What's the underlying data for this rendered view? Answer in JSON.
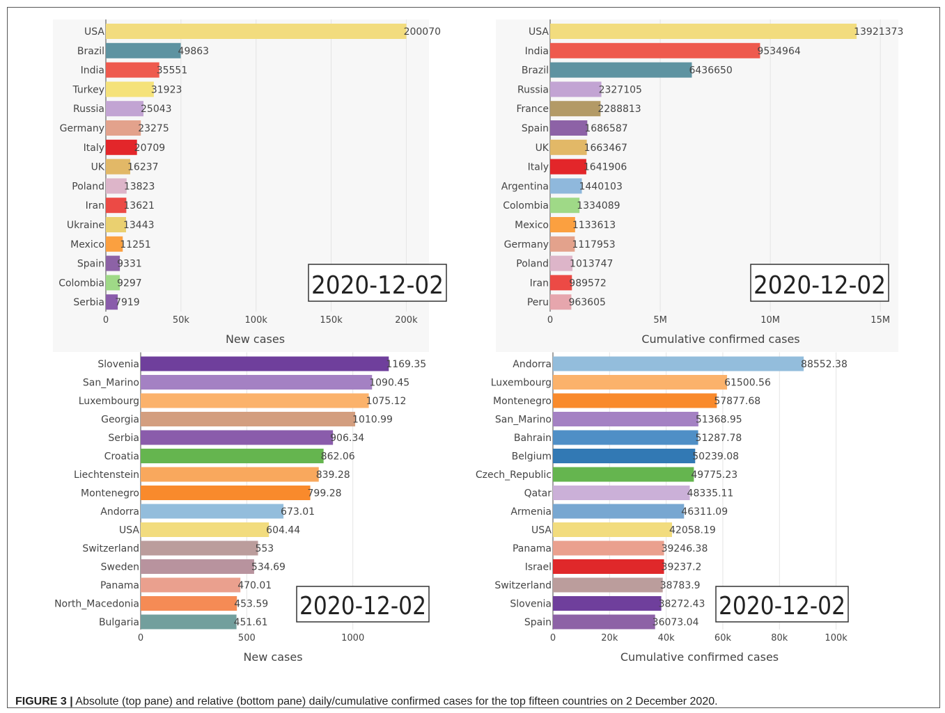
{
  "caption": {
    "label": "FIGURE 3 |",
    "text": "Absolute (top pane) and relative (bottom pane) daily/cumulative confirmed cases for the top fifteen countries on 2 December 2020."
  },
  "chart_data": [
    {
      "type": "bar",
      "orientation": "horizontal",
      "date_label": "2020-12-02",
      "xlabel": "New cases",
      "xlim": [
        0,
        210000
      ],
      "xticks": [
        0,
        50000,
        100000,
        150000,
        200000
      ],
      "xtick_labels": [
        "0",
        "50k",
        "100k",
        "150k",
        "200k"
      ],
      "grid": true,
      "categories": [
        "USA",
        "Brazil",
        "India",
        "Turkey",
        "Russia",
        "Germany",
        "Italy",
        "UK",
        "Poland",
        "Iran",
        "Ukraine",
        "Mexico",
        "Spain",
        "Colombia",
        "Serbia"
      ],
      "values": [
        200070,
        49863,
        35551,
        31923,
        25043,
        23275,
        20709,
        16237,
        13823,
        13621,
        13443,
        11251,
        9331,
        9297,
        7919
      ],
      "value_labels": [
        "200070",
        "49863",
        "35551",
        "31923",
        "25043",
        "23275",
        "20709",
        "16237",
        "13823",
        "13621",
        "13443",
        "11251",
        "9331",
        "9297",
        "7919"
      ],
      "colors": [
        "#f2dc7e",
        "#5e93a1",
        "#ee5a4e",
        "#f5e27a",
        "#c2a4d3",
        "#e3a28c",
        "#e3262a",
        "#e2b867",
        "#ddb5c9",
        "#ec4a45",
        "#ead070",
        "#fba040",
        "#8d62a6",
        "#9fd987",
        "#8a5cab"
      ]
    },
    {
      "type": "bar",
      "orientation": "horizontal",
      "date_label": "2020-12-02",
      "xlabel": "Cumulative confirmed cases",
      "xlim": [
        0,
        15500000
      ],
      "xticks": [
        0,
        5000000,
        10000000,
        15000000
      ],
      "xtick_labels": [
        "0",
        "5M",
        "10M",
        "15M"
      ],
      "grid": true,
      "categories": [
        "USA",
        "India",
        "Brazil",
        "Russia",
        "France",
        "Spain",
        "UK",
        "Italy",
        "Argentina",
        "Colombia",
        "Mexico",
        "Germany",
        "Poland",
        "Iran",
        "Peru"
      ],
      "values": [
        13921373,
        9534964,
        6436650,
        2327105,
        2288813,
        1686587,
        1663467,
        1641906,
        1440103,
        1334089,
        1133613,
        1117953,
        1013747,
        989572,
        963605
      ],
      "value_labels": [
        "13921373",
        "9534964",
        "6436650",
        "2327105",
        "2288813",
        "1686587",
        "1663467",
        "1641906",
        "1440103",
        "1334089",
        "1133613",
        "1117953",
        "1013747",
        "989572",
        "963605"
      ],
      "colors": [
        "#f2dc7e",
        "#ee5a4e",
        "#5e93a1",
        "#c2a4d3",
        "#b39a66",
        "#8d62a6",
        "#e2b867",
        "#e3262a",
        "#8fb8dc",
        "#9fd987",
        "#fba040",
        "#e3a28c",
        "#ddb5c9",
        "#ec4a45",
        "#e6a6ad"
      ]
    },
    {
      "type": "bar",
      "orientation": "horizontal",
      "date_label": "2020-12-02",
      "xlabel": "New cases",
      "xlim": [
        0,
        1280
      ],
      "xticks": [
        0,
        500,
        1000
      ],
      "xtick_labels": [
        "0",
        "500",
        "1000"
      ],
      "grid": true,
      "categories": [
        "Slovenia",
        "San_Marino",
        "Luxembourg",
        "Georgia",
        "Serbia",
        "Croatia",
        "Liechtenstein",
        "Montenegro",
        "Andorra",
        "USA",
        "Switzerland",
        "Sweden",
        "Panama",
        "North_Macedonia",
        "Bulgaria"
      ],
      "values": [
        1169.35,
        1090.45,
        1075.12,
        1010.99,
        906.34,
        862.06,
        839.28,
        799.28,
        673.01,
        604.44,
        553,
        534.69,
        470.01,
        453.59,
        451.61
      ],
      "value_labels": [
        "1169.35",
        "1090.45",
        "1075.12",
        "1010.99",
        "906.34",
        "862.06",
        "839.28",
        "799.28",
        "673.01",
        "604.44",
        "553",
        "534.69",
        "470.01",
        "453.59",
        "451.61"
      ],
      "colors": [
        "#6f3f9c",
        "#a481c3",
        "#fbb26b",
        "#d39e7f",
        "#8a5cab",
        "#65b54f",
        "#f9a85d",
        "#f98a2c",
        "#93bddc",
        "#f2dc7e",
        "#bb9d9c",
        "#b8939e",
        "#eaa08e",
        "#f58b55",
        "#729f9d"
      ]
    },
    {
      "type": "bar",
      "orientation": "horizontal",
      "date_label": "2020-12-02",
      "xlabel": "Cumulative confirmed cases",
      "xlim": [
        0,
        106000
      ],
      "xticks": [
        0,
        20000,
        40000,
        60000,
        80000,
        100000
      ],
      "xtick_labels": [
        "0",
        "20k",
        "40k",
        "60k",
        "80k",
        "100k"
      ],
      "grid": true,
      "categories": [
        "Andorra",
        "Luxembourg",
        "Montenegro",
        "San_Marino",
        "Bahrain",
        "Belgium",
        "Czech_Republic",
        "Qatar",
        "Armenia",
        "USA",
        "Panama",
        "Israel",
        "Switzerland",
        "Slovenia",
        "Spain"
      ],
      "values": [
        88552.38,
        61500.56,
        57877.68,
        51368.95,
        51287.78,
        50239.08,
        49775.23,
        48335.11,
        46311.09,
        42058.19,
        39246.38,
        39237.2,
        38783.9,
        38272.43,
        36073.04
      ],
      "value_labels": [
        "88552.38",
        "61500.56",
        "57877.68",
        "51368.95",
        "51287.78",
        "50239.08",
        "49775.23",
        "48335.11",
        "46311.09",
        "42058.19",
        "39246.38",
        "39237.2",
        "38783.9",
        "38272.43",
        "36073.04"
      ],
      "colors": [
        "#93bddc",
        "#fbb26b",
        "#f98a2c",
        "#a481c3",
        "#4f8fc6",
        "#3279b4",
        "#65b54f",
        "#cbb0d8",
        "#78a7d1",
        "#f2dc7e",
        "#eaa08e",
        "#e0282a",
        "#bb9d9c",
        "#6f3f9c",
        "#8d62a6"
      ]
    }
  ]
}
